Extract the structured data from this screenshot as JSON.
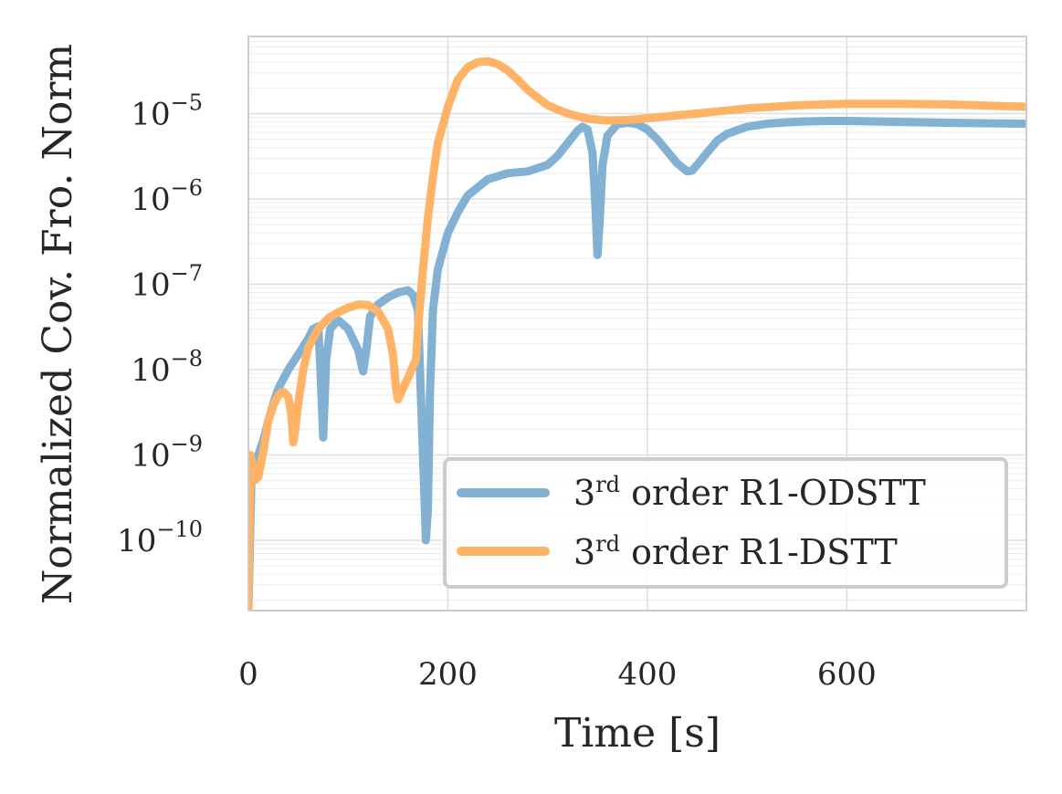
{
  "chart_data": {
    "type": "line",
    "title": "",
    "xlabel": "Time [s]",
    "ylabel": "Normalized Cov. Fro. Norm",
    "xlim": [
      0,
      780
    ],
    "ylim": [
      1.5e-11,
      8e-05
    ],
    "yscale": "log",
    "x_ticks": [
      0,
      200,
      400,
      600
    ],
    "x_tick_labels": [
      "0",
      "200",
      "400",
      "600"
    ],
    "y_ticks": [
      {
        "value": 1e-10,
        "base": "10",
        "exp": "−10"
      },
      {
        "value": 1e-09,
        "base": "10",
        "exp": "−9"
      },
      {
        "value": 1e-08,
        "base": "10",
        "exp": "−8"
      },
      {
        "value": 1e-07,
        "base": "10",
        "exp": "−7"
      },
      {
        "value": 1e-06,
        "base": "10",
        "exp": "−6"
      },
      {
        "value": 1e-05,
        "base": "10",
        "exp": "−5"
      }
    ],
    "grid": true,
    "legend_position": "lower-right",
    "series": [
      {
        "name": "3rd order R1-ODSTT",
        "legend_prefix": "3",
        "legend_sup": "rd",
        "legend_suffix": " order R1-ODSTT",
        "color": "#82b1d3",
        "x": [
          0,
          3,
          6,
          10,
          15,
          20,
          25,
          30,
          40,
          50,
          60,
          65,
          70,
          72,
          75,
          78,
          82,
          90,
          100,
          110,
          115,
          118,
          122,
          130,
          140,
          150,
          160,
          165,
          170,
          172,
          175,
          178,
          180,
          182,
          185,
          190,
          200,
          210,
          220,
          240,
          260,
          280,
          300,
          310,
          320,
          330,
          335,
          340,
          345,
          348,
          350,
          352,
          355,
          360,
          370,
          380,
          390,
          400,
          410,
          420,
          430,
          440,
          445,
          450,
          460,
          470,
          480,
          500,
          520,
          540,
          560,
          580,
          600,
          650,
          700,
          780
        ],
        "y": [
          1.5e-11,
          5e-10,
          8e-10,
          1e-09,
          1.5e-09,
          2.5e-09,
          4e-09,
          6e-09,
          1e-08,
          1.5e-08,
          2.3e-08,
          3e-08,
          3.2e-08,
          1.2e-08,
          1.6e-09,
          1.3e-08,
          3e-08,
          3.8e-08,
          3e-08,
          1.7e-08,
          9.5e-09,
          1.6e-08,
          4.2e-08,
          5.8e-08,
          7e-08,
          8e-08,
          8.5e-08,
          7.5e-08,
          5e-08,
          1e-08,
          1e-09,
          1e-10,
          2.3e-10,
          5e-09,
          5e-08,
          1.5e-07,
          4e-07,
          7e-07,
          1.1e-06,
          1.7e-06,
          2e-06,
          2.1e-06,
          2.5e-06,
          3.2e-06,
          4.5e-06,
          6.3e-06,
          7e-06,
          6.5e-06,
          3.5e-06,
          8e-07,
          2.2e-07,
          5e-07,
          2.5e-06,
          5.5e-06,
          7.5e-06,
          7.8e-06,
          7.5e-06,
          6.5e-06,
          5e-06,
          3.6e-06,
          2.6e-06,
          2.1e-06,
          2.15e-06,
          2.5e-06,
          3.5e-06,
          4.8e-06,
          5.8e-06,
          7e-06,
          7.6e-06,
          7.9e-06,
          8.1e-06,
          8.2e-06,
          8.2e-06,
          8e-06,
          7.8e-06,
          7.6e-06
        ]
      },
      {
        "name": "3rd order R1-DSTT",
        "legend_prefix": "3",
        "legend_sup": "rd",
        "legend_suffix": " order R1-DSTT",
        "color": "#ffb366",
        "x": [
          0,
          2,
          4,
          6,
          10,
          15,
          20,
          25,
          30,
          35,
          40,
          43,
          45,
          47,
          50,
          55,
          60,
          70,
          80,
          90,
          100,
          110,
          120,
          130,
          140,
          145,
          148,
          150,
          152,
          155,
          160,
          165,
          168,
          170,
          175,
          180,
          185,
          190,
          200,
          210,
          220,
          230,
          240,
          250,
          260,
          270,
          280,
          300,
          320,
          340,
          360,
          380,
          400,
          450,
          500,
          550,
          600,
          650,
          700,
          780
        ],
        "y": [
          1.5e-11,
          1e-09,
          8e-10,
          5e-10,
          5.5e-10,
          1.1e-09,
          2.5e-09,
          3.8e-09,
          5e-09,
          5.5e-09,
          4.8e-09,
          3e-09,
          1.4e-09,
          2e-09,
          4e-09,
          1e-08,
          1.8e-08,
          3e-08,
          4e-08,
          4.7e-08,
          5.3e-08,
          5.8e-08,
          5.7e-08,
          4.8e-08,
          3e-08,
          1.5e-08,
          6e-09,
          4.5e-09,
          5e-09,
          6e-09,
          8e-09,
          1.1e-08,
          1.3e-08,
          3e-08,
          1.5e-07,
          6e-07,
          1.8e-06,
          4.5e-06,
          1.2e-05,
          2.5e-05,
          3.5e-05,
          4e-05,
          4.1e-05,
          3.8e-05,
          3.2e-05,
          2.5e-05,
          1.9e-05,
          1.25e-05,
          1e-05,
          8.7e-06,
          8.3e-06,
          8.4e-06,
          8.8e-06,
          1e-05,
          1.15e-05,
          1.25e-05,
          1.3e-05,
          1.3e-05,
          1.28e-05,
          1.2e-05
        ]
      }
    ]
  }
}
